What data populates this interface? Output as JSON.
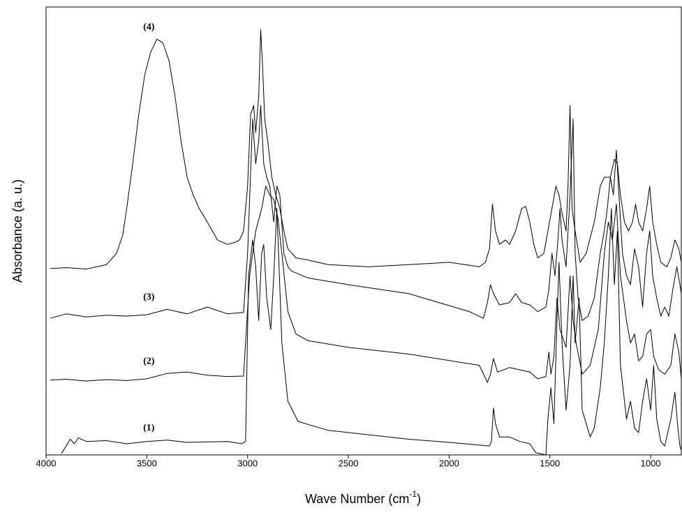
{
  "chart_data": {
    "type": "line",
    "xlabel": [
      "Wave Number (cm",
      "-1",
      ")"
    ],
    "ylabel": "Absorbance (a. u.)",
    "xlim": [
      4000,
      848
    ],
    "xticks": [
      4000,
      3500,
      3000,
      2500,
      2000,
      1500,
      1000
    ],
    "ylim": [
      0,
      100
    ],
    "series": [
      {
        "name": "(1)",
        "color": "#000000",
        "x": [
          3924,
          3900,
          3880,
          3860,
          3840,
          3800,
          3700,
          3600,
          3500,
          3400,
          3300,
          3100,
          3030,
          3010,
          2995,
          2975,
          2960,
          2945,
          2930,
          2920,
          2905,
          2885,
          2870,
          2855,
          2845,
          2830,
          2800,
          2750,
          2700,
          2600,
          2400,
          2200,
          2000,
          1800,
          1790,
          1780,
          1770,
          1750,
          1700,
          1650,
          1600,
          1570,
          1520,
          1510,
          1495,
          1480,
          1465,
          1455,
          1440,
          1420,
          1400,
          1385,
          1375,
          1355,
          1340,
          1300,
          1280,
          1250,
          1230,
          1210,
          1195,
          1180,
          1165,
          1150,
          1120,
          1100,
          1080,
          1060,
          1040,
          1020,
          1000,
          985,
          970,
          950,
          930,
          900,
          880,
          865,
          855,
          848
        ],
        "values": [
          0.3,
          2,
          3.5,
          2.5,
          3.8,
          3,
          3.2,
          2.5,
          3,
          3.3,
          2.8,
          3,
          2.5,
          3,
          40,
          48,
          42,
          30,
          45,
          47,
          35,
          28,
          40,
          55,
          43,
          25,
          12,
          7.5,
          6.8,
          5.5,
          4.5,
          3.5,
          2.8,
          2,
          3,
          10.5,
          7,
          4,
          4,
          3,
          2.5,
          0.5,
          0,
          8,
          15,
          7,
          30,
          43,
          25,
          10,
          20,
          40,
          25,
          35,
          10,
          4,
          6,
          15,
          25,
          40,
          55,
          38,
          50,
          20,
          8,
          12,
          6,
          5,
          12,
          17,
          10,
          20,
          8,
          3,
          2,
          8,
          14,
          6,
          2,
          1
        ]
      },
      {
        "name": "(2)",
        "color": "#000000",
        "x": [
          3980,
          3900,
          3800,
          3700,
          3600,
          3500,
          3400,
          3300,
          3200,
          3100,
          3020,
          2990,
          2960,
          2930,
          2910,
          2890,
          2870,
          2850,
          2830,
          2800,
          2760,
          2700,
          2500,
          2200,
          1850,
          1810,
          1795,
          1780,
          1760,
          1700,
          1650,
          1600,
          1560,
          1520,
          1505,
          1495,
          1480,
          1465,
          1450,
          1420,
          1400,
          1385,
          1370,
          1340,
          1300,
          1260,
          1230,
          1210,
          1190,
          1170,
          1150,
          1120,
          1100,
          1080,
          1060,
          1040,
          1020,
          1000,
          985,
          960,
          930,
          900,
          880,
          860,
          848
        ],
        "values": [
          16.7,
          16.9,
          16.5,
          16.8,
          16.6,
          17,
          18.2,
          18.5,
          17.8,
          17.5,
          17.6,
          40,
          50,
          55,
          60,
          58,
          57,
          53,
          45,
          32,
          27,
          25.5,
          24,
          22.5,
          20,
          16.2,
          18,
          21.5,
          18.5,
          19.5,
          19,
          18.5,
          17,
          17.5,
          23,
          18,
          22,
          35,
          28,
          24,
          40,
          30,
          25,
          18,
          20,
          28,
          45,
          52,
          48,
          56,
          40,
          30,
          25,
          27,
          21,
          22,
          27,
          28,
          22,
          19,
          18,
          20,
          27,
          23,
          17
        ]
      },
      {
        "name": "(3)",
        "color": "#000000",
        "x": [
          3980,
          3900,
          3800,
          3700,
          3600,
          3500,
          3400,
          3300,
          3200,
          3100,
          3020,
          3000,
          2975,
          2960,
          2945,
          2935,
          2920,
          2905,
          2890,
          2870,
          2855,
          2840,
          2820,
          2800,
          2780,
          2700,
          2500,
          2200,
          1900,
          1830,
          1810,
          1795,
          1780,
          1750,
          1700,
          1670,
          1640,
          1600,
          1560,
          1520,
          1505,
          1490,
          1475,
          1460,
          1450,
          1440,
          1420,
          1400,
          1385,
          1375,
          1360,
          1340,
          1310,
          1280,
          1250,
          1230,
          1215,
          1200,
          1185,
          1170,
          1160,
          1140,
          1120,
          1100,
          1080,
          1060,
          1040,
          1020,
          1005,
          990,
          970,
          950,
          930,
          910,
          890,
          870,
          855,
          848
        ],
        "values": [
          30.5,
          31.5,
          30.8,
          31.2,
          31,
          31.3,
          32.5,
          31.5,
          33,
          31.5,
          31.8,
          45,
          75,
          65,
          70,
          78,
          65,
          62,
          60,
          52,
          60,
          58,
          45,
          42,
          41,
          39.5,
          38,
          36,
          32,
          30.5,
          34,
          38,
          36,
          33.5,
          34,
          36,
          34,
          33.5,
          32,
          33,
          37,
          45,
          40,
          48,
          55,
          48,
          42,
          58,
          75,
          45,
          35,
          30,
          31,
          35,
          45,
          50,
          55,
          62,
          58,
          68,
          60,
          45,
          40,
          38,
          46,
          42,
          33,
          45,
          50,
          40,
          35,
          31,
          33,
          31,
          37,
          42,
          38,
          36
        ]
      },
      {
        "name": "(4)",
        "color": "#000000",
        "x": [
          3980,
          3900,
          3800,
          3700,
          3650,
          3620,
          3600,
          3570,
          3540,
          3510,
          3480,
          3450,
          3420,
          3390,
          3360,
          3330,
          3300,
          3270,
          3240,
          3200,
          3150,
          3100,
          3060,
          3040,
          3020,
          3000,
          2985,
          2970,
          2960,
          2945,
          2935,
          2925,
          2915,
          2900,
          2880,
          2860,
          2840,
          2820,
          2800,
          2760,
          2700,
          2600,
          2400,
          2200,
          2000,
          1850,
          1820,
          1800,
          1785,
          1770,
          1750,
          1720,
          1700,
          1670,
          1640,
          1620,
          1600,
          1580,
          1560,
          1530,
          1510,
          1490,
          1470,
          1455,
          1440,
          1420,
          1410,
          1400,
          1390,
          1375,
          1350,
          1320,
          1280,
          1250,
          1230,
          1200,
          1180,
          1165,
          1150,
          1130,
          1110,
          1090,
          1075,
          1060,
          1040,
          1020,
          1005,
          990,
          970,
          950,
          920,
          900,
          880,
          860,
          848
        ],
        "values": [
          41.6,
          41.8,
          41.5,
          42.5,
          45,
          49,
          55,
          65,
          76,
          85,
          90,
          92.8,
          92,
          88,
          80,
          70,
          62,
          58,
          55,
          52,
          48,
          47,
          47.5,
          48,
          50,
          60,
          76,
          78,
          72,
          80,
          95,
          86,
          75,
          70,
          62,
          58,
          55,
          50,
          46,
          44,
          43.5,
          42.5,
          42,
          42.5,
          43,
          42,
          43,
          46,
          56,
          50,
          47,
          48,
          47,
          50,
          55,
          55.5,
          52,
          47,
          44,
          45,
          50,
          55,
          60,
          58,
          54,
          50,
          60,
          78,
          55,
          50,
          43,
          45,
          52,
          60,
          62,
          62,
          66,
          65,
          58,
          52,
          50,
          52,
          56,
          52,
          50,
          55,
          60,
          52,
          47,
          43,
          42,
          44,
          48,
          46,
          43
        ]
      }
    ]
  }
}
